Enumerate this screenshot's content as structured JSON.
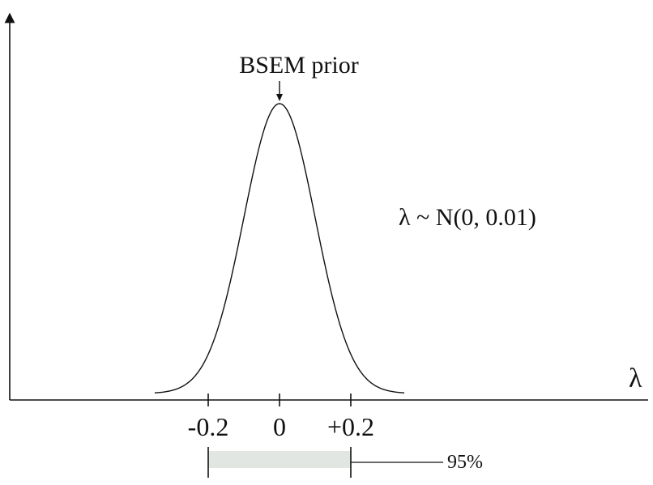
{
  "chart_data": {
    "type": "line",
    "title": "",
    "xlabel": "λ",
    "ylabel": "",
    "annotation_label": "BSEM prior",
    "formula": "λ ~ N(0, 0.01)",
    "distribution": {
      "family": "normal",
      "mean": 0,
      "variance": 0.01,
      "sd": 0.1
    },
    "curve_domain": [
      -0.35,
      0.35
    ],
    "x_ticks": [
      {
        "value": -0.2,
        "label": "-0.2"
      },
      {
        "value": 0,
        "label": "0"
      },
      {
        "value": 0.2,
        "label": "+0.2"
      }
    ],
    "interval": {
      "from": -0.2,
      "to": 0.2,
      "label": "95%"
    },
    "grid": false,
    "legend": "none"
  }
}
